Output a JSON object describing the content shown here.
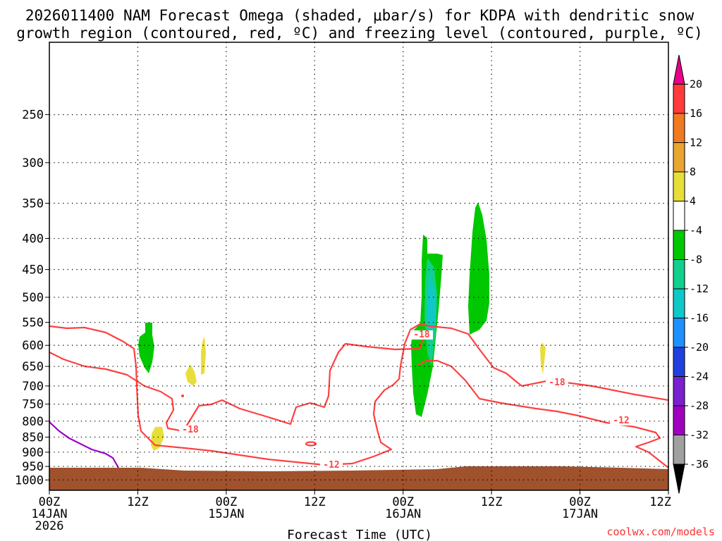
{
  "chart_data": {
    "type": "contour",
    "title_lines": [
      "2026011400 NAM Forecast Omega (shaded, μbar/s) for KDPA with dendritic snow",
      "growth region (contoured, red, ºC) and freezing level (contoured, purple, ºC)"
    ],
    "xlabel": "Forecast Time (UTC)",
    "watermark": "coolwx.com/models",
    "x_ticks": [
      {
        "hour": 0,
        "label": "00Z",
        "sub": [
          "14JAN",
          "2026"
        ]
      },
      {
        "hour": 12,
        "label": "12Z",
        "sub": []
      },
      {
        "hour": 24,
        "label": "00Z",
        "sub": [
          "15JAN"
        ]
      },
      {
        "hour": 36,
        "label": "12Z",
        "sub": []
      },
      {
        "hour": 48,
        "label": "00Z",
        "sub": [
          "16JAN"
        ]
      },
      {
        "hour": 60,
        "label": "12Z",
        "sub": []
      },
      {
        "hour": 72,
        "label": "00Z",
        "sub": [
          "17JAN"
        ]
      },
      {
        "hour": 84,
        "label": "12Z",
        "sub": []
      }
    ],
    "x_range_hours": [
      0,
      84
    ],
    "y_scale": "log-pressure, inverted",
    "y_range_hPa": [
      1040,
      190
    ],
    "y_ticks": [
      250,
      300,
      350,
      400,
      450,
      500,
      550,
      600,
      650,
      700,
      750,
      800,
      850,
      900,
      950,
      1000
    ],
    "grid": true,
    "colorbar": {
      "units": "μbar/s",
      "labels": [
        "20",
        "16",
        "12",
        "8",
        "4",
        "-4",
        "-8",
        "-12",
        "-16",
        "-20",
        "-24",
        "-28",
        "-32",
        "-36"
      ],
      "colors": [
        "#e8008a",
        "#ff3b3b",
        "#f07a22",
        "#e8a530",
        "#e8de3a",
        "#ffffff",
        "#00c800",
        "#10d08c",
        "#10c8c8",
        "#1e90ff",
        "#2040e0",
        "#7a20d0",
        "#a000c0",
        "#a0a0a0",
        "#000000"
      ]
    },
    "terrain_color": "#a0522d",
    "dgz_contour_labels": [
      "-18",
      "-18",
      "-18",
      "-12",
      "-12"
    ],
    "omega_regions": [
      {
        "color": "#00c800",
        "value_range": [
          -8,
          -4
        ],
        "approx_center": {
          "hour": 11.5,
          "hPa": 630
        }
      },
      {
        "color": "#00c800",
        "value_range": [
          -8,
          -4
        ],
        "approx_center": {
          "hour": 51.5,
          "hPa": 560
        }
      },
      {
        "color": "#10d08c",
        "value_range": [
          -12,
          -8
        ],
        "approx_center": {
          "hour": 51.8,
          "hPa": 520
        }
      },
      {
        "color": "#10c8c8",
        "value_range": [
          -16,
          -12
        ],
        "approx_center": {
          "hour": 52.0,
          "hPa": 500
        }
      },
      {
        "color": "#00c800",
        "value_range": [
          -8,
          -4
        ],
        "approx_center": {
          "hour": 58.0,
          "hPa": 470
        }
      },
      {
        "color": "#e8de3a",
        "value_range": [
          4,
          8
        ],
        "approx_center": {
          "hour": 14.5,
          "hPa": 875
        }
      },
      {
        "color": "#e8de3a",
        "value_range": [
          4,
          8
        ],
        "approx_center": {
          "hour": 19.5,
          "hPa": 690
        }
      },
      {
        "color": "#e8de3a",
        "value_range": [
          4,
          8
        ],
        "approx_center": {
          "hour": 21.0,
          "hPa": 640
        }
      },
      {
        "color": "#e8de3a",
        "value_range": [
          4,
          8
        ],
        "approx_center": {
          "hour": 67.0,
          "hPa": 650
        }
      }
    ]
  }
}
